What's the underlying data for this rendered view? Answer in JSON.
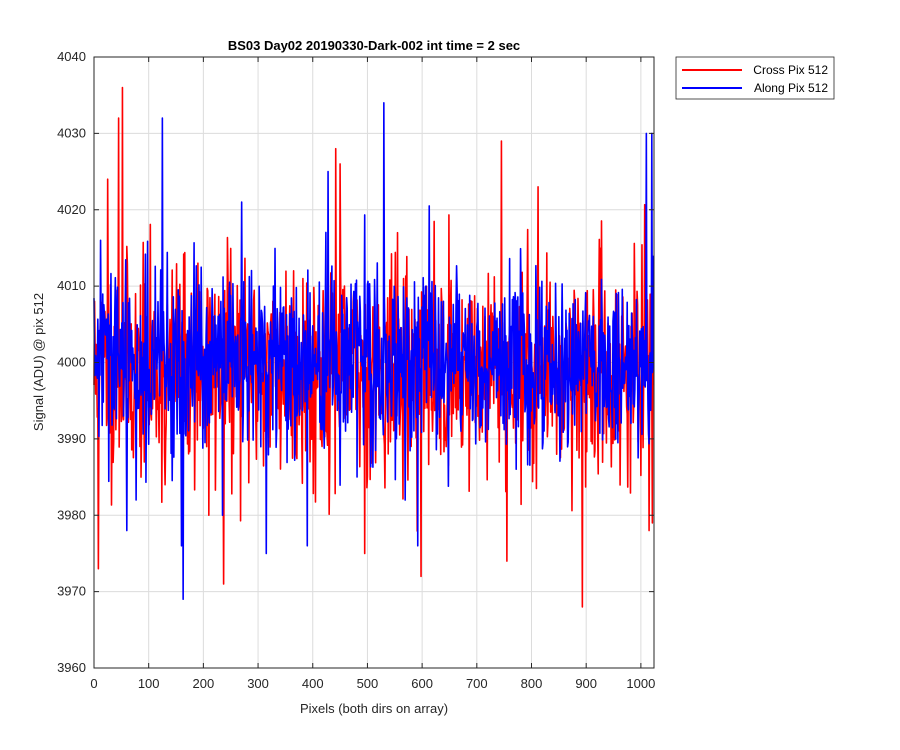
{
  "chart_data": {
    "type": "line",
    "title": "BS03 Day02 20190330-Dark-002 int time = 2 sec",
    "xlabel": "Pixels (both dirs on array)",
    "ylabel": "Signal (ADU) @ pix 512",
    "xlim": [
      0,
      1024
    ],
    "ylim": [
      3960,
      4040
    ],
    "xticks": [
      0,
      100,
      200,
      300,
      400,
      500,
      600,
      700,
      800,
      900,
      1000
    ],
    "yticks": [
      3960,
      3970,
      3980,
      3990,
      4000,
      4010,
      4020,
      4030,
      4040
    ],
    "grid": true,
    "legend_position": "outside-top-right",
    "series": [
      {
        "name": "Cross Pix 512",
        "color": "#ff0000",
        "mean": 3999,
        "std": 7,
        "seed": 11,
        "spikes": [
          [
            2,
            4002
          ],
          [
            8,
            3973
          ],
          [
            25,
            4024
          ],
          [
            45,
            4032
          ],
          [
            52,
            4036
          ],
          [
            130,
            3984
          ],
          [
            190,
            4013
          ],
          [
            210,
            3980
          ],
          [
            237,
            3971
          ],
          [
            245,
            4011
          ],
          [
            365,
            4012
          ],
          [
            395,
            3987
          ],
          [
            442,
            4028
          ],
          [
            450,
            4026
          ],
          [
            495,
            3975
          ],
          [
            598,
            3972
          ],
          [
            745,
            4029
          ],
          [
            755,
            3974
          ],
          [
            812,
            4023
          ],
          [
            893,
            3968
          ],
          [
            1015,
            3978
          ],
          [
            1021,
            3979
          ]
        ]
      },
      {
        "name": "Along Pix 512",
        "color": "#0000ff",
        "mean": 4000,
        "std": 6,
        "seed": 29,
        "spikes": [
          [
            12,
            4016
          ],
          [
            60,
            3978
          ],
          [
            77,
            3982
          ],
          [
            125,
            4032
          ],
          [
            160,
            3976
          ],
          [
            163,
            3969
          ],
          [
            235,
            3980
          ],
          [
            270,
            4021
          ],
          [
            315,
            3975
          ],
          [
            390,
            3976
          ],
          [
            428,
            4025
          ],
          [
            530,
            4034
          ],
          [
            592,
            3976
          ],
          [
            850,
            4006
          ],
          [
            1010,
            4030
          ],
          [
            1020,
            4030
          ],
          [
            1023,
            4014
          ]
        ]
      }
    ]
  }
}
